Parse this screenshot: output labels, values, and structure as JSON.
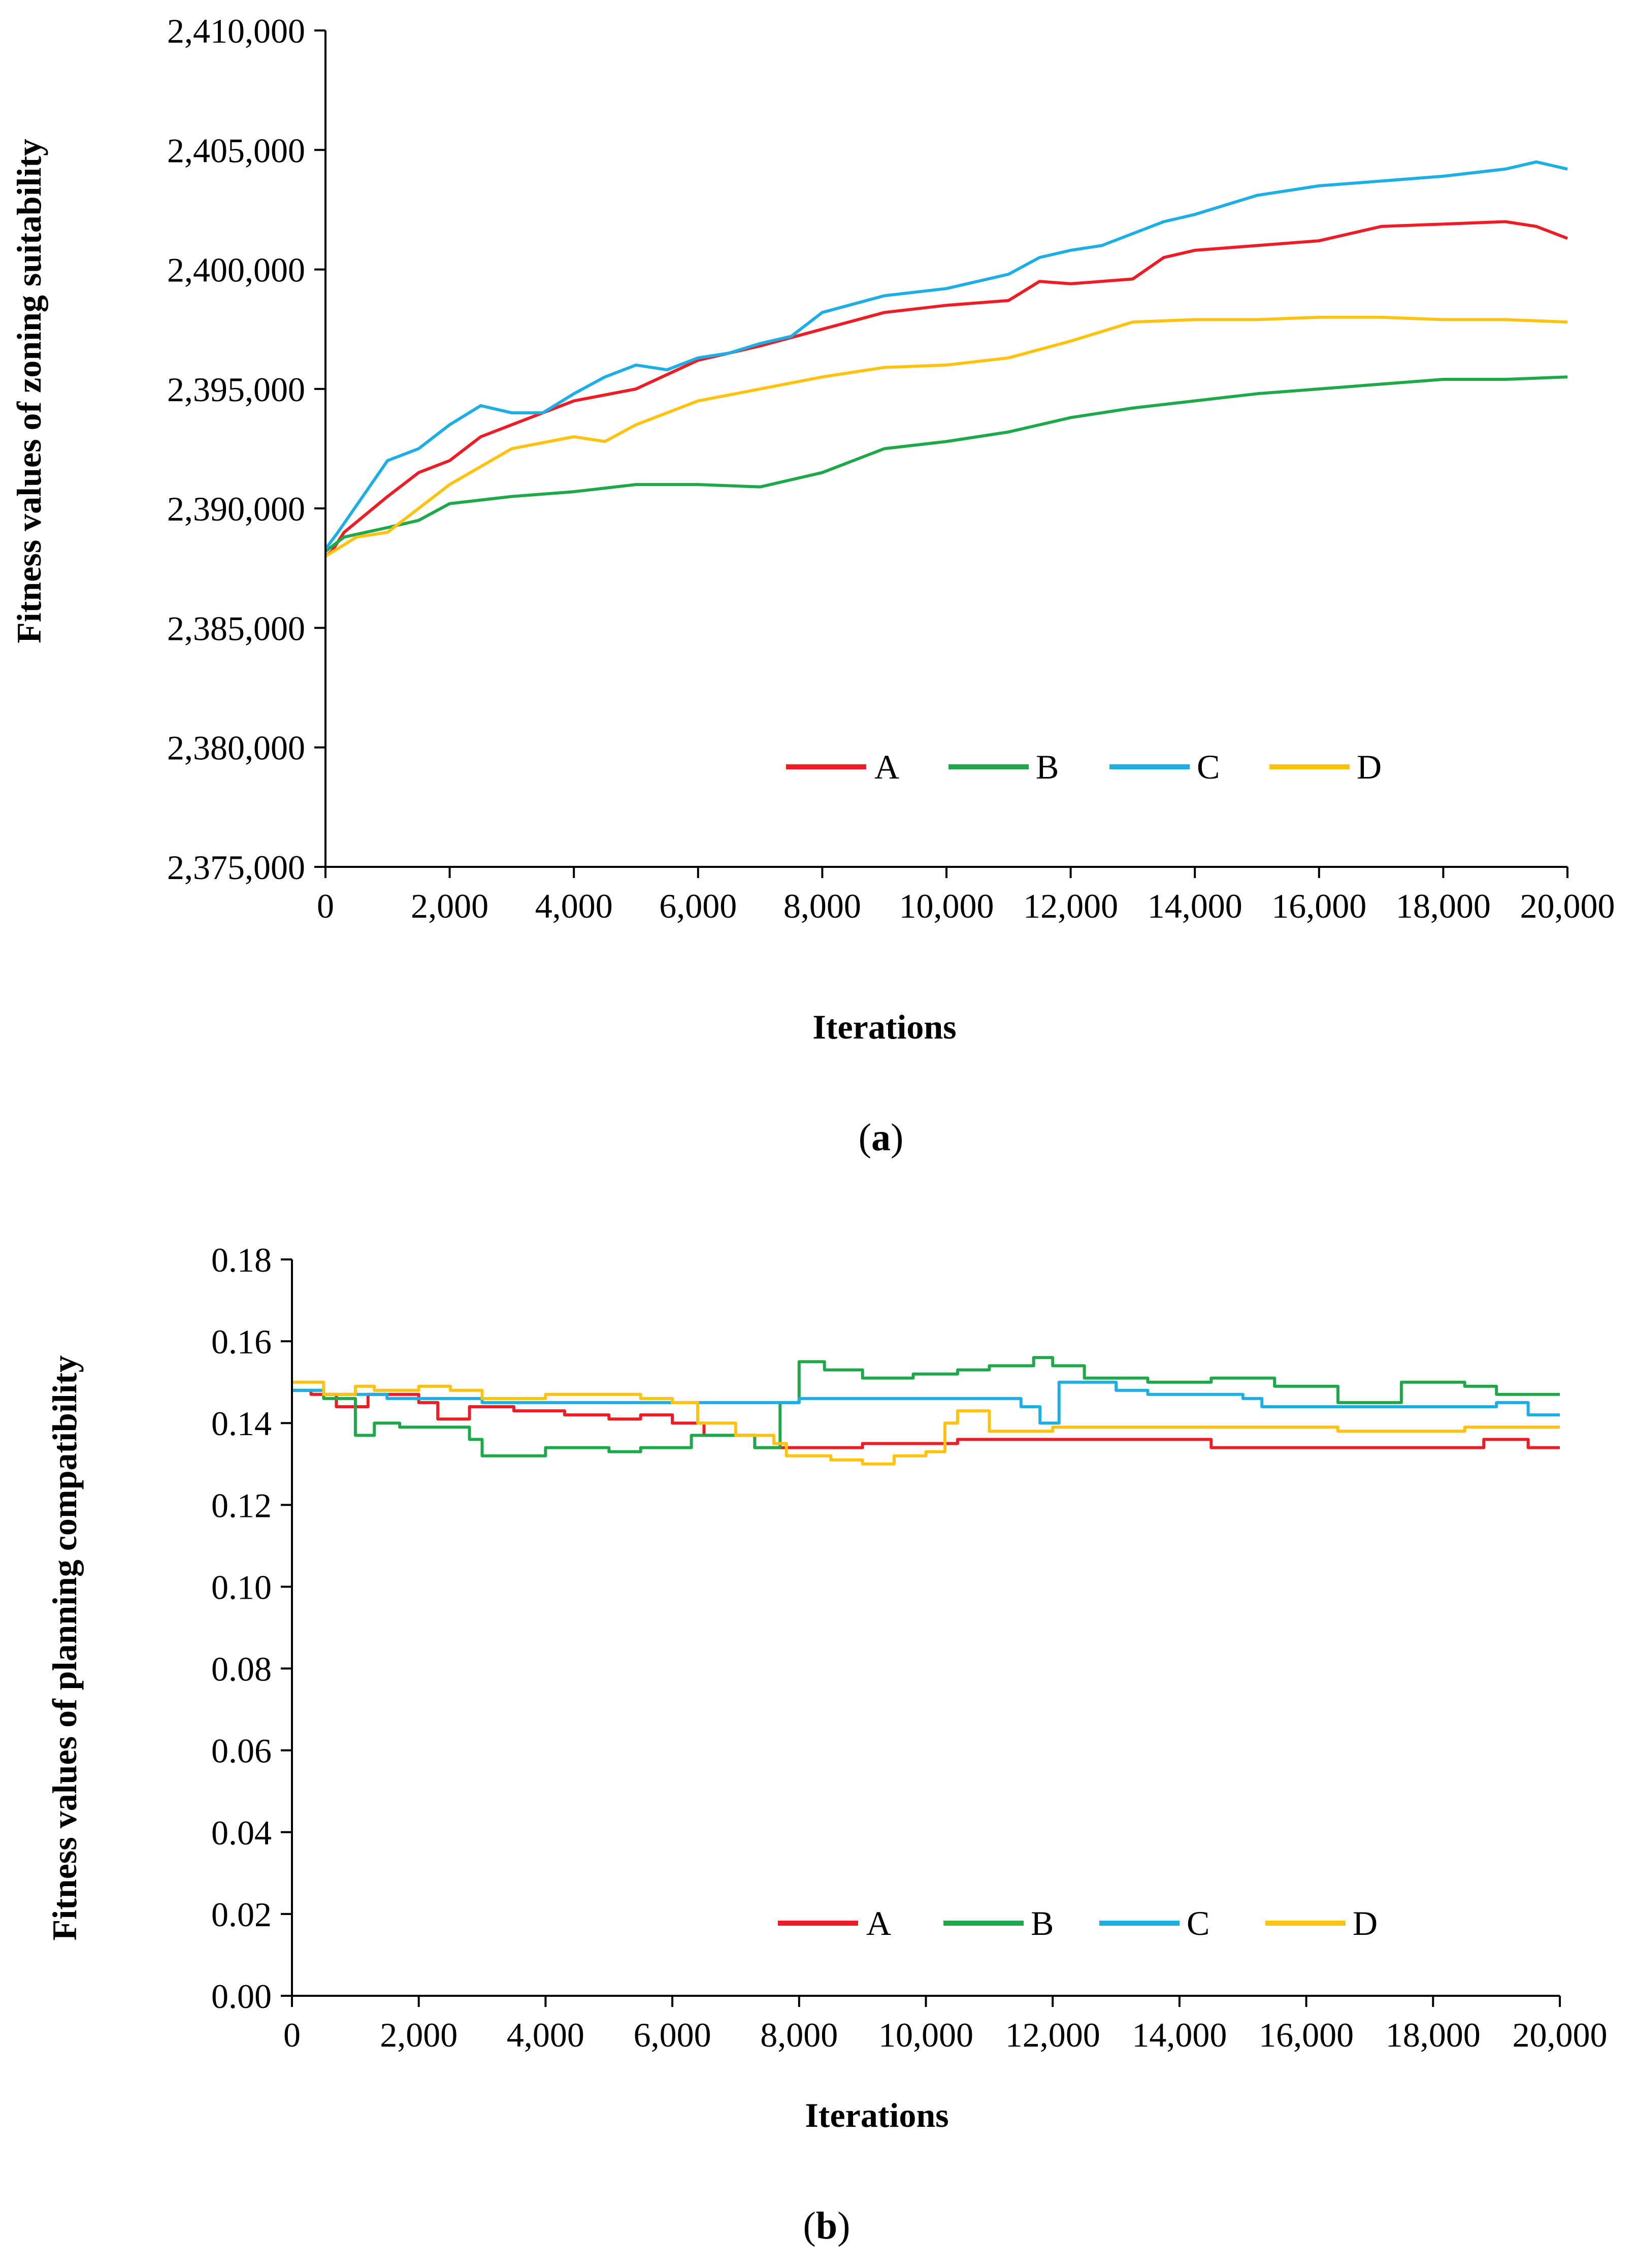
{
  "colors": {
    "A": "#ee1c25",
    "B": "#1ea84a",
    "C": "#1daee6",
    "D": "#ffc20e",
    "axis": "#000000"
  },
  "chart_data": [
    {
      "type": "line",
      "panel_label": "(a)",
      "panel_label_parts": [
        "(",
        "a",
        ")"
      ],
      "xlabel": "Iterations",
      "ylabel": "Fitness values of zoning suitability",
      "xlim": [
        0,
        20000
      ],
      "ylim": [
        2375000,
        2410000
      ],
      "xticks": [
        0,
        2000,
        4000,
        6000,
        8000,
        10000,
        12000,
        14000,
        16000,
        18000,
        20000
      ],
      "xtick_labels": [
        "0",
        "2,000",
        "4,000",
        "6,000",
        "8,000",
        "10,000",
        "12,000",
        "14,000",
        "16,000",
        "18,000",
        "20,000"
      ],
      "yticks": [
        2375000,
        2380000,
        2385000,
        2390000,
        2395000,
        2400000,
        2405000,
        2410000
      ],
      "ytick_labels": [
        "2,375,000",
        "2,380,000",
        "2,385,000",
        "2,390,000",
        "2,395,000",
        "2,400,000",
        "2,405,000",
        "2,410,000"
      ],
      "legend_position": "lower-right",
      "series": [
        {
          "name": "A",
          "points": [
            [
              0,
              2388000
            ],
            [
              100,
              2388200
            ],
            [
              300,
              2389000
            ],
            [
              1000,
              2390500
            ],
            [
              1500,
              2391500
            ],
            [
              2000,
              2392000
            ],
            [
              2500,
              2393000
            ],
            [
              3000,
              2393500
            ],
            [
              4000,
              2394500
            ],
            [
              5000,
              2395000
            ],
            [
              6000,
              2396200
            ],
            [
              7000,
              2396800
            ],
            [
              8000,
              2397500
            ],
            [
              9000,
              2398200
            ],
            [
              10000,
              2398500
            ],
            [
              11000,
              2398700
            ],
            [
              11500,
              2399500
            ],
            [
              12000,
              2399400
            ],
            [
              13000,
              2399600
            ],
            [
              13500,
              2400500
            ],
            [
              14000,
              2400800
            ],
            [
              15000,
              2401000
            ],
            [
              16000,
              2401200
            ],
            [
              17000,
              2401800
            ],
            [
              18000,
              2401900
            ],
            [
              19000,
              2402000
            ],
            [
              19500,
              2401800
            ],
            [
              20000,
              2401300
            ]
          ]
        },
        {
          "name": "B",
          "points": [
            [
              0,
              2388200
            ],
            [
              300,
              2388800
            ],
            [
              1000,
              2389200
            ],
            [
              1500,
              2389500
            ],
            [
              2000,
              2390200
            ],
            [
              3000,
              2390500
            ],
            [
              4000,
              2390700
            ],
            [
              5000,
              2391000
            ],
            [
              6000,
              2391000
            ],
            [
              7000,
              2390900
            ],
            [
              8000,
              2391500
            ],
            [
              8500,
              2392000
            ],
            [
              9000,
              2392500
            ],
            [
              10000,
              2392800
            ],
            [
              11000,
              2393200
            ],
            [
              12000,
              2393800
            ],
            [
              13000,
              2394200
            ],
            [
              14000,
              2394500
            ],
            [
              15000,
              2394800
            ],
            [
              16000,
              2395000
            ],
            [
              17000,
              2395200
            ],
            [
              18000,
              2395400
            ],
            [
              19000,
              2395400
            ],
            [
              20000,
              2395500
            ]
          ]
        },
        {
          "name": "C",
          "points": [
            [
              0,
              2388300
            ],
            [
              200,
              2389000
            ],
            [
              600,
              2390500
            ],
            [
              1000,
              2392000
            ],
            [
              1500,
              2392500
            ],
            [
              2000,
              2393500
            ],
            [
              2500,
              2394300
            ],
            [
              3000,
              2394000
            ],
            [
              3500,
              2394000
            ],
            [
              4000,
              2394800
            ],
            [
              4500,
              2395500
            ],
            [
              5000,
              2396000
            ],
            [
              5500,
              2395800
            ],
            [
              6000,
              2396300
            ],
            [
              6500,
              2396500
            ],
            [
              7000,
              2396900
            ],
            [
              7500,
              2397200
            ],
            [
              8000,
              2398200
            ],
            [
              9000,
              2398900
            ],
            [
              10000,
              2399200
            ],
            [
              11000,
              2399800
            ],
            [
              11500,
              2400500
            ],
            [
              12000,
              2400800
            ],
            [
              12500,
              2401000
            ],
            [
              13000,
              2401500
            ],
            [
              13500,
              2402000
            ],
            [
              14000,
              2402300
            ],
            [
              14500,
              2402700
            ],
            [
              15000,
              2403100
            ],
            [
              16000,
              2403500
            ],
            [
              17000,
              2403700
            ],
            [
              18000,
              2403900
            ],
            [
              19000,
              2404200
            ],
            [
              19500,
              2404500
            ],
            [
              20000,
              2404200
            ]
          ]
        },
        {
          "name": "D",
          "points": [
            [
              0,
              2388000
            ],
            [
              500,
              2388800
            ],
            [
              1000,
              2389000
            ],
            [
              1500,
              2390000
            ],
            [
              2000,
              2391000
            ],
            [
              3000,
              2392500
            ],
            [
              4000,
              2393000
            ],
            [
              4500,
              2392800
            ],
            [
              5000,
              2393500
            ],
            [
              6000,
              2394500
            ],
            [
              7000,
              2395000
            ],
            [
              8000,
              2395500
            ],
            [
              9000,
              2395900
            ],
            [
              10000,
              2396000
            ],
            [
              11000,
              2396300
            ],
            [
              12000,
              2397000
            ],
            [
              13000,
              2397800
            ],
            [
              14000,
              2397900
            ],
            [
              15000,
              2397900
            ],
            [
              16000,
              2398000
            ],
            [
              17000,
              2398000
            ],
            [
              18000,
              2397900
            ],
            [
              19000,
              2397900
            ],
            [
              20000,
              2397800
            ]
          ]
        }
      ]
    },
    {
      "type": "line",
      "panel_label": "(b)",
      "panel_label_parts": [
        "(",
        "b",
        ")"
      ],
      "xlabel": "Iterations",
      "ylabel": "Fitness values of planning compatibility",
      "xlim": [
        0,
        20000
      ],
      "ylim": [
        0.0,
        0.18
      ],
      "xticks": [
        0,
        2000,
        4000,
        6000,
        8000,
        10000,
        12000,
        14000,
        16000,
        18000,
        20000
      ],
      "xtick_labels": [
        "0",
        "2,000",
        "4,000",
        "6,000",
        "8,000",
        "10,000",
        "12,000",
        "14,000",
        "16,000",
        "18,000",
        "20,000"
      ],
      "yticks": [
        0.0,
        0.02,
        0.04,
        0.06,
        0.08,
        0.1,
        0.12,
        0.14,
        0.16,
        0.18
      ],
      "ytick_labels": [
        "0.00",
        "0.02",
        "0.04",
        "0.06",
        "0.08",
        "0.10",
        "0.12",
        "0.14",
        "0.16",
        "0.18"
      ],
      "legend_position": "lower-right",
      "series": [
        {
          "name": "A",
          "step": true,
          "points": [
            [
              0,
              0.148
            ],
            [
              300,
              0.147
            ],
            [
              700,
              0.144
            ],
            [
              1200,
              0.147
            ],
            [
              2000,
              0.145
            ],
            [
              2300,
              0.141
            ],
            [
              2800,
              0.144
            ],
            [
              3500,
              0.143
            ],
            [
              4300,
              0.142
            ],
            [
              5000,
              0.141
            ],
            [
              5500,
              0.142
            ],
            [
              6000,
              0.14
            ],
            [
              6500,
              0.137
            ],
            [
              7300,
              0.134
            ],
            [
              8500,
              0.134
            ],
            [
              9000,
              0.135
            ],
            [
              10000,
              0.135
            ],
            [
              10500,
              0.136
            ],
            [
              11000,
              0.136
            ],
            [
              12000,
              0.136
            ],
            [
              14000,
              0.136
            ],
            [
              14500,
              0.134
            ],
            [
              16000,
              0.134
            ],
            [
              18000,
              0.134
            ],
            [
              18800,
              0.136
            ],
            [
              19500,
              0.134
            ],
            [
              20000,
              0.134
            ]
          ]
        },
        {
          "name": "B",
          "step": true,
          "points": [
            [
              0,
              0.148
            ],
            [
              500,
              0.146
            ],
            [
              1000,
              0.137
            ],
            [
              1300,
              0.14
            ],
            [
              1700,
              0.139
            ],
            [
              2800,
              0.136
            ],
            [
              3000,
              0.132
            ],
            [
              4000,
              0.134
            ],
            [
              5000,
              0.133
            ],
            [
              5500,
              0.134
            ],
            [
              6300,
              0.137
            ],
            [
              7300,
              0.134
            ],
            [
              7700,
              0.145
            ],
            [
              8000,
              0.155
            ],
            [
              8400,
              0.153
            ],
            [
              9000,
              0.151
            ],
            [
              9800,
              0.152
            ],
            [
              10500,
              0.153
            ],
            [
              11000,
              0.154
            ],
            [
              11700,
              0.156
            ],
            [
              12000,
              0.154
            ],
            [
              12500,
              0.151
            ],
            [
              13500,
              0.15
            ],
            [
              14500,
              0.151
            ],
            [
              15500,
              0.149
            ],
            [
              16500,
              0.145
            ],
            [
              17500,
              0.15
            ],
            [
              18500,
              0.149
            ],
            [
              19000,
              0.147
            ],
            [
              20000,
              0.147
            ]
          ]
        },
        {
          "name": "C",
          "step": true,
          "points": [
            [
              0,
              0.148
            ],
            [
              500,
              0.147
            ],
            [
              1500,
              0.146
            ],
            [
              2500,
              0.146
            ],
            [
              3000,
              0.145
            ],
            [
              4000,
              0.145
            ],
            [
              5000,
              0.145
            ],
            [
              6000,
              0.145
            ],
            [
              7000,
              0.145
            ],
            [
              8000,
              0.146
            ],
            [
              9000,
              0.146
            ],
            [
              10000,
              0.146
            ],
            [
              11500,
              0.144
            ],
            [
              11800,
              0.14
            ],
            [
              12100,
              0.15
            ],
            [
              13000,
              0.148
            ],
            [
              13500,
              0.147
            ],
            [
              15000,
              0.146
            ],
            [
              15300,
              0.144
            ],
            [
              16000,
              0.144
            ],
            [
              17000,
              0.144
            ],
            [
              18000,
              0.144
            ],
            [
              19000,
              0.145
            ],
            [
              19500,
              0.142
            ],
            [
              20000,
              0.142
            ]
          ]
        },
        {
          "name": "D",
          "step": true,
          "points": [
            [
              0,
              0.15
            ],
            [
              500,
              0.147
            ],
            [
              1000,
              0.149
            ],
            [
              1300,
              0.148
            ],
            [
              2000,
              0.149
            ],
            [
              2500,
              0.148
            ],
            [
              3000,
              0.146
            ],
            [
              4000,
              0.147
            ],
            [
              5500,
              0.146
            ],
            [
              6000,
              0.145
            ],
            [
              6400,
              0.14
            ],
            [
              7000,
              0.137
            ],
            [
              7600,
              0.135
            ],
            [
              7800,
              0.132
            ],
            [
              8500,
              0.131
            ],
            [
              9000,
              0.13
            ],
            [
              9500,
              0.132
            ],
            [
              10000,
              0.133
            ],
            [
              10300,
              0.14
            ],
            [
              10500,
              0.143
            ],
            [
              11000,
              0.138
            ],
            [
              12000,
              0.139
            ],
            [
              13500,
              0.139
            ],
            [
              15000,
              0.139
            ],
            [
              16500,
              0.138
            ],
            [
              17500,
              0.138
            ],
            [
              18500,
              0.139
            ],
            [
              20000,
              0.139
            ]
          ]
        }
      ]
    }
  ]
}
